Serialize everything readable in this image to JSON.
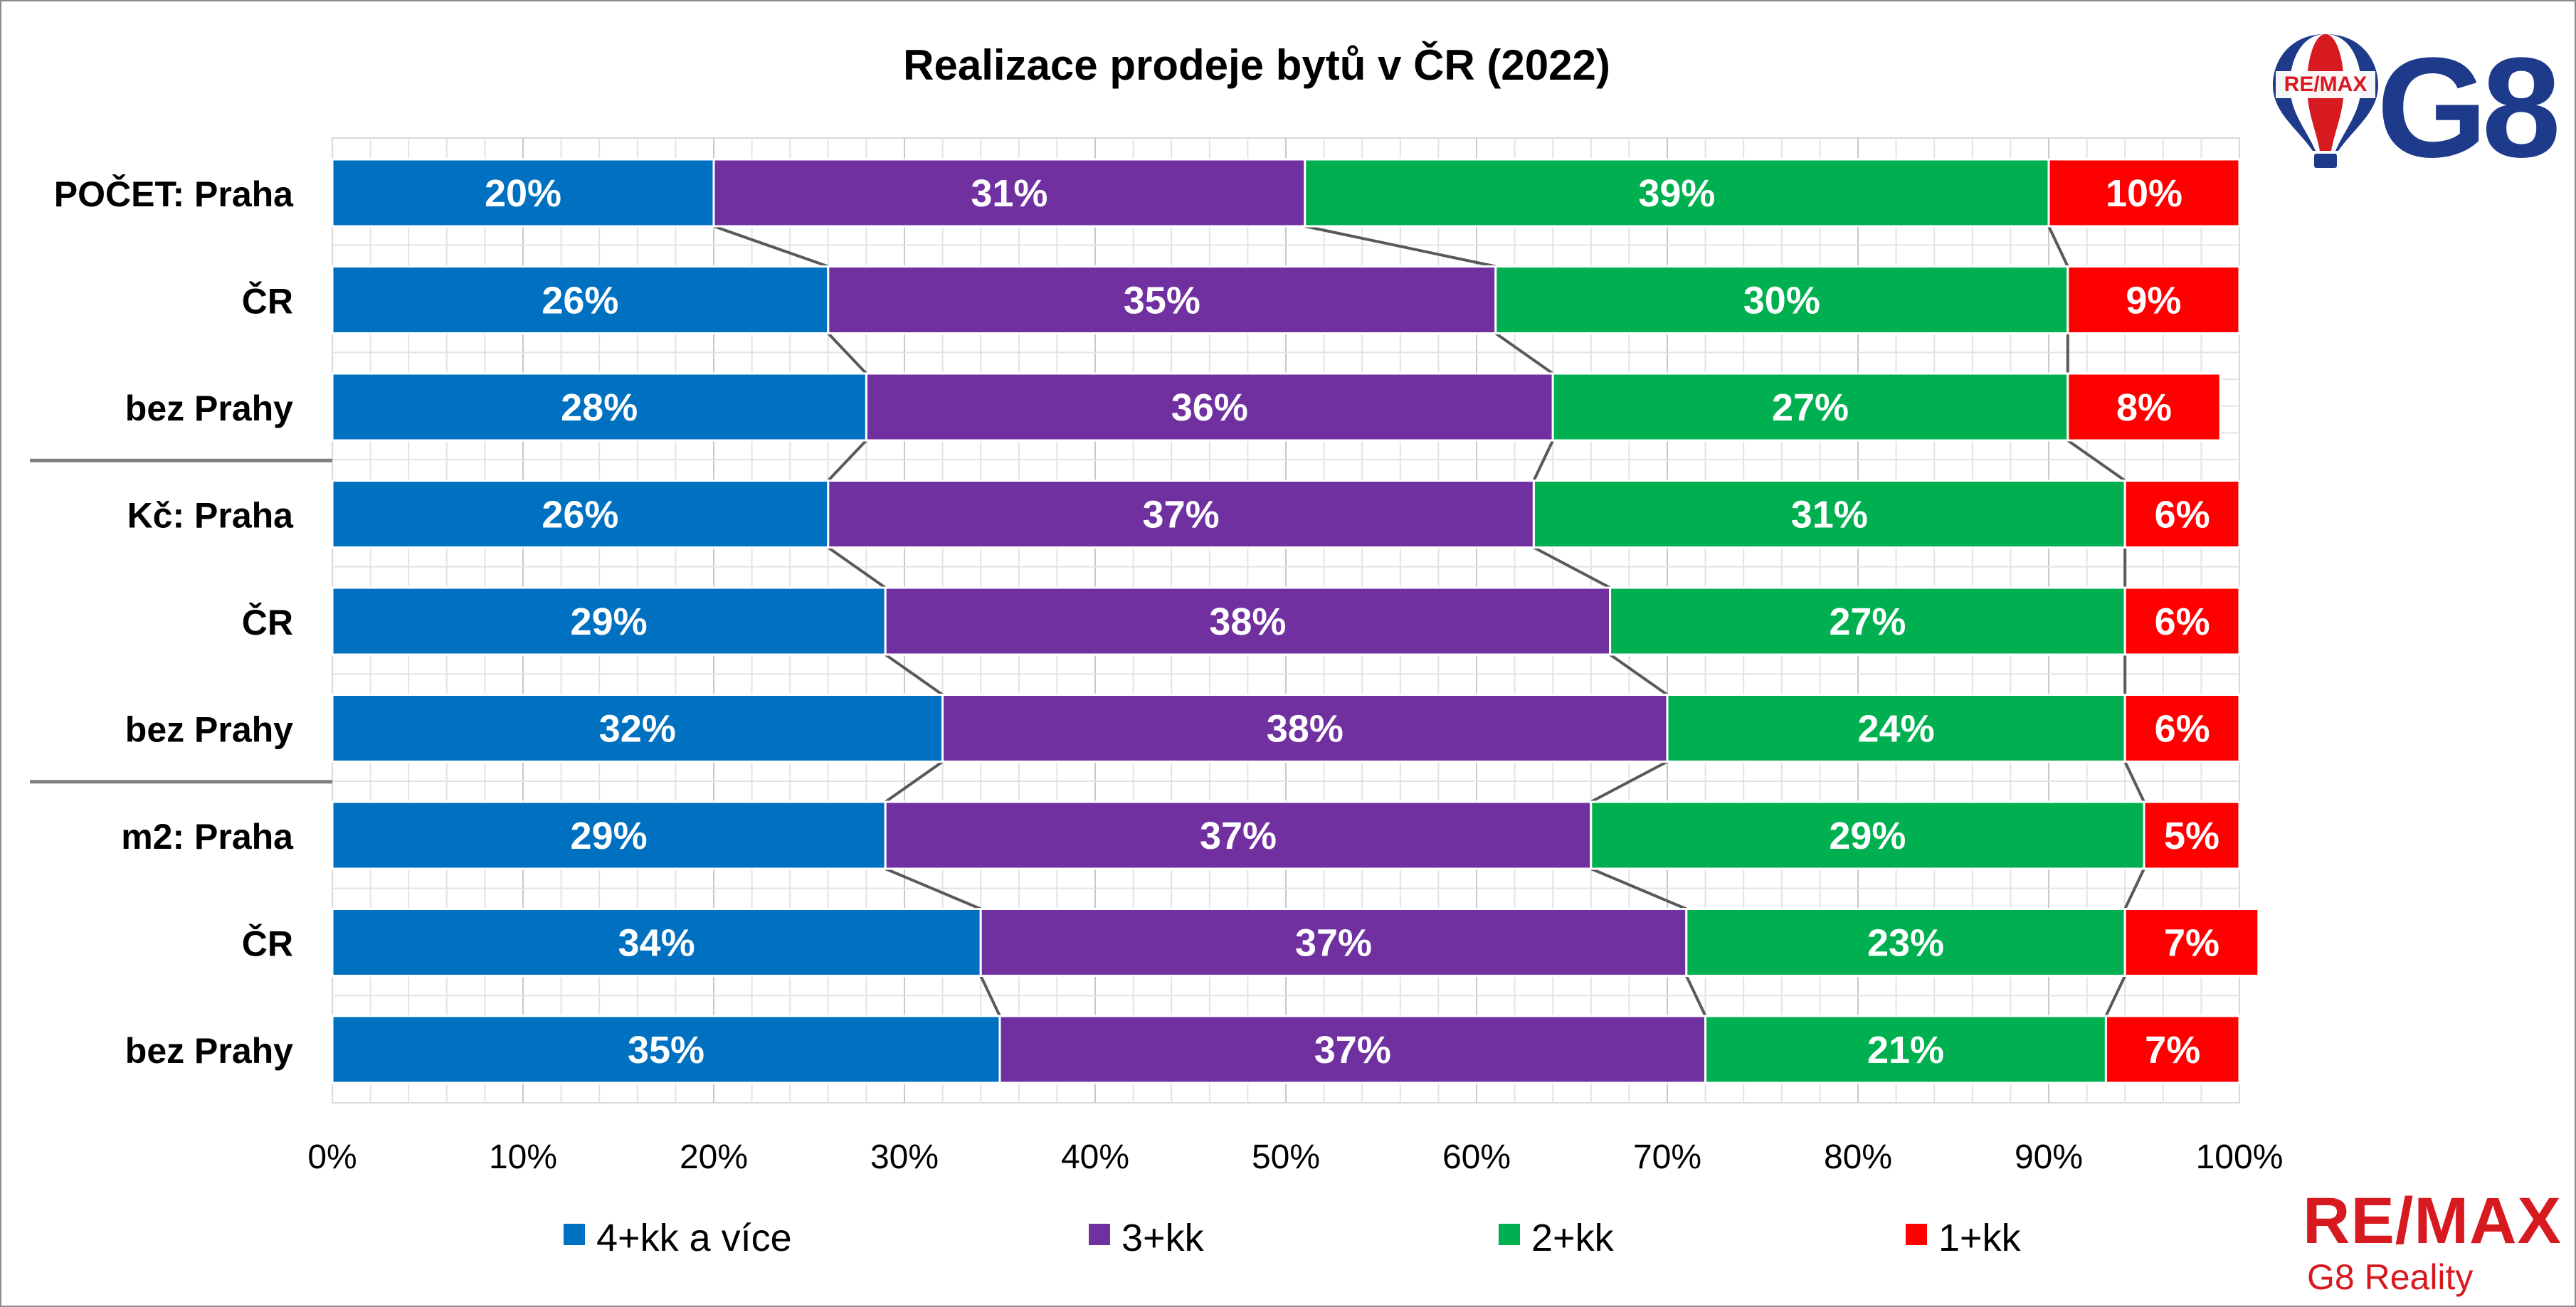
{
  "chart_data": {
    "type": "bar",
    "stacked": "percent",
    "orientation": "horizontal",
    "title": "Realizace prodeje bytů v ČR (2022)",
    "categories": [
      "POČET: Praha",
      "ČR",
      "bez Prahy",
      "Kč: Praha",
      "ČR",
      "bez Prahy",
      "m2: Praha",
      "ČR",
      "bez Prahy"
    ],
    "groups": [
      "POČET",
      "Kč",
      "m2"
    ],
    "series": [
      {
        "name": "4+kk a více",
        "color": "#0070c0",
        "values": [
          20,
          26,
          28,
          26,
          29,
          32,
          29,
          34,
          35
        ]
      },
      {
        "name": "3+kk",
        "color": "#7030a0",
        "values": [
          31,
          35,
          36,
          37,
          38,
          38,
          37,
          37,
          37
        ]
      },
      {
        "name": "2+kk",
        "color": "#00b050",
        "values": [
          39,
          30,
          27,
          31,
          27,
          24,
          29,
          23,
          21
        ]
      },
      {
        "name": "1+kk",
        "color": "#ff0000",
        "values": [
          10,
          9,
          8,
          6,
          6,
          6,
          5,
          7,
          7
        ]
      }
    ],
    "xlim": [
      0,
      100
    ],
    "xticks": [
      "0%",
      "10%",
      "20%",
      "30%",
      "40%",
      "50%",
      "60%",
      "70%",
      "80%",
      "90%",
      "100%"
    ],
    "grid": true,
    "legend_position": "bottom",
    "data_labels": true,
    "series_lines": true
  },
  "logos": {
    "top_balloon_text": "RE/MAX",
    "top_brand": "G8",
    "bottom_brand": "RE/MAX",
    "bottom_sub": "G8 Reality"
  }
}
